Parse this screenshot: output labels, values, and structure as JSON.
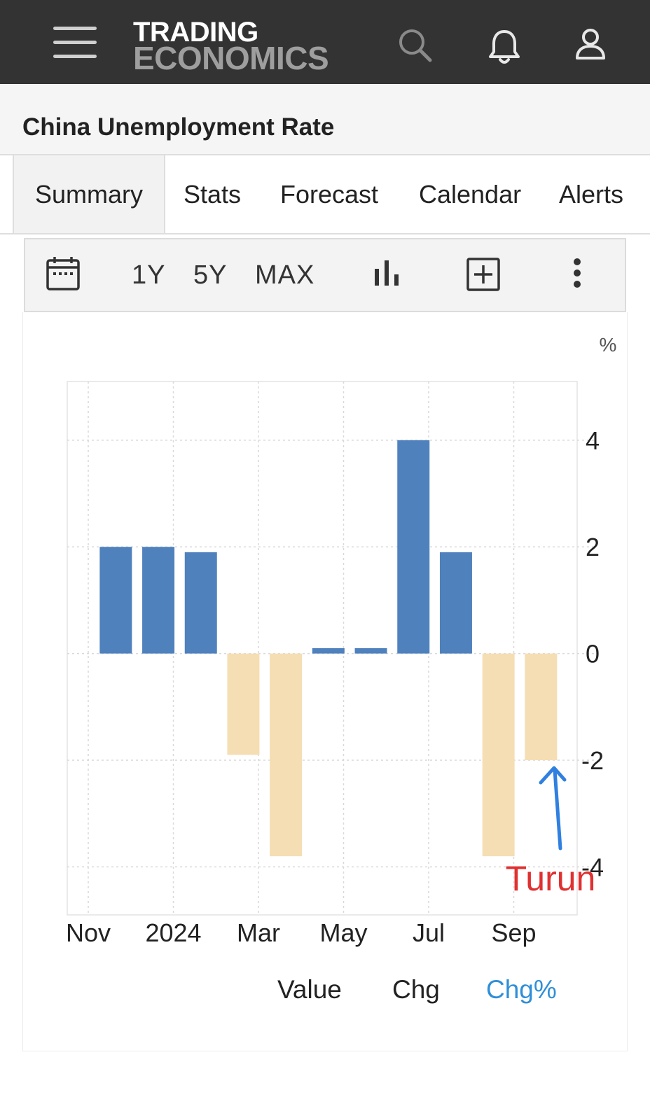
{
  "header": {
    "logo_line1": "TRADING",
    "logo_line2": "ECONOMICS",
    "icons": [
      "menu-icon",
      "search-icon",
      "bell-icon",
      "user-icon"
    ]
  },
  "page": {
    "title": "China Unemployment Rate"
  },
  "tabs": [
    {
      "label": "Summary",
      "active": true
    },
    {
      "label": "Stats"
    },
    {
      "label": "Forecast"
    },
    {
      "label": "Calendar"
    },
    {
      "label": "Alerts"
    }
  ],
  "toolbar": {
    "range_1y": "1Y",
    "range_5y": "5Y",
    "range_max": "MAX",
    "icons": [
      "calendar-icon",
      "bar-chart-icon",
      "add-box-icon",
      "more-vert-icon"
    ]
  },
  "legend": {
    "value": "Value",
    "chg": "Chg",
    "chg_pct": "Chg%",
    "active": "Chg%"
  },
  "annotation": {
    "text": "Turun",
    "color": "#e03030",
    "arrow_color": "#2f80e0"
  },
  "colors": {
    "positive": "#4f81bd",
    "negative": "#f5deb3",
    "accent": "#2f8fd8"
  },
  "chart_data": {
    "type": "bar",
    "unit_label": "%",
    "x_tick_labels": [
      "Nov",
      "2024",
      "Mar",
      "May",
      "Jul",
      "Sep"
    ],
    "values": [
      2.0,
      2.0,
      1.9,
      -1.9,
      -3.8,
      0.1,
      0.1,
      4.0,
      1.9,
      -3.8,
      -2.0
    ],
    "y_ticks": [
      4,
      2,
      0,
      -2,
      -4
    ],
    "ylim": [
      -4.9,
      5.1
    ],
    "grid": true,
    "y_axis_side": "right"
  }
}
